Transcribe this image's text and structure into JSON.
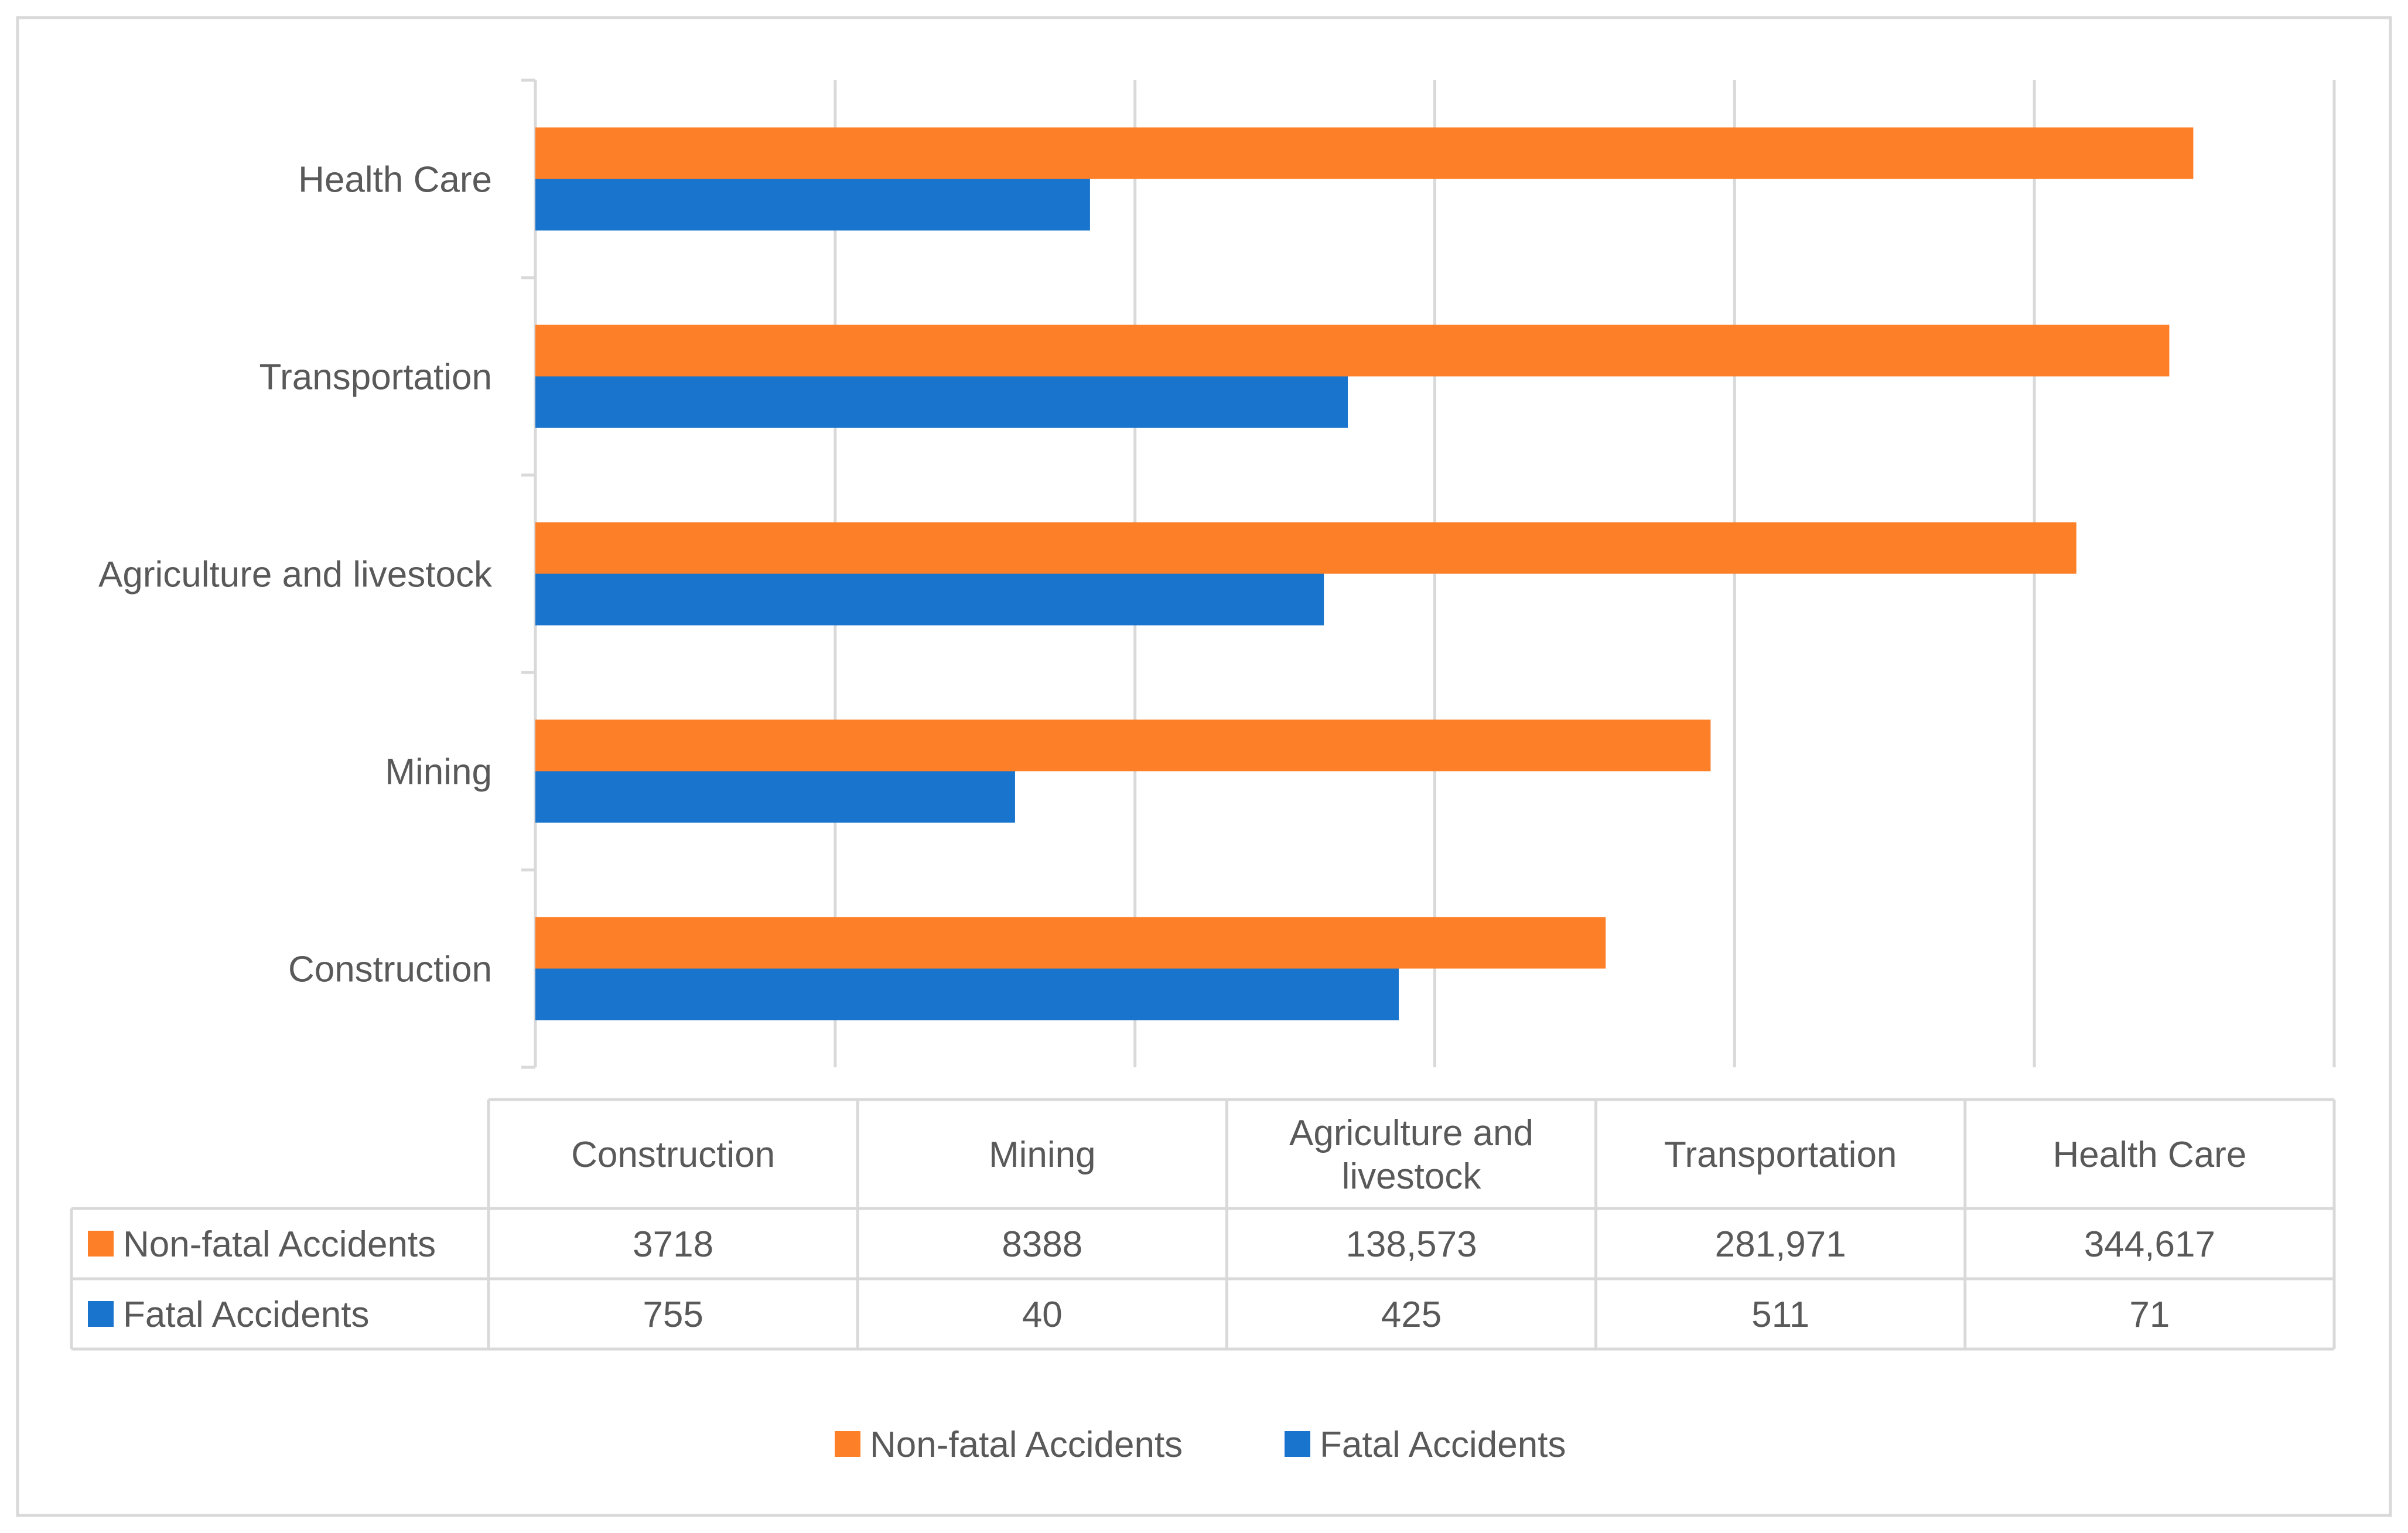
{
  "colors": {
    "non_fatal": "#FD7F27",
    "fatal": "#1874CD",
    "grid": "#D9D9D9",
    "table_border": "#D9D9D9",
    "text": "#595959"
  },
  "chart_data": {
    "type": "bar",
    "orientation": "horizontal",
    "title": "",
    "xlabel": "",
    "ylabel": "",
    "categories": [
      "Construction",
      "Mining",
      "Agriculture and livestock",
      "Transportation",
      "Health Care"
    ],
    "table_headers": [
      [
        "Construction"
      ],
      [
        "Mining"
      ],
      [
        "Agriculture and",
        "livestock"
      ],
      [
        "Transportation"
      ],
      [
        "Health Care"
      ]
    ],
    "series": [
      {
        "name": "Non-fatal Accidents",
        "color": "#FD7F27",
        "table_values": [
          "3718",
          "8388",
          "138,573",
          "281,971",
          "344,617"
        ],
        "bar_values": [
          3.57,
          3.92,
          5.14,
          5.45,
          5.53
        ]
      },
      {
        "name": "Fatal Accidents",
        "color": "#1874CD",
        "table_values": [
          "755",
          "40",
          "425",
          "511",
          "71"
        ],
        "bar_values": [
          2.88,
          1.6,
          2.63,
          2.71,
          1.85
        ]
      }
    ],
    "xlim": [
      0,
      6
    ],
    "grid": true,
    "axis_tick_labels_shown": false,
    "data_table": true,
    "legend": "bottom"
  }
}
